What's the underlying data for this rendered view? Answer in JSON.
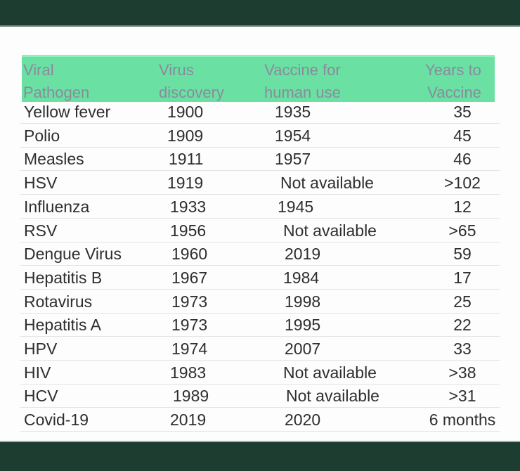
{
  "table": {
    "headers": [
      {
        "line1": "Viral",
        "line2": "Pathogen"
      },
      {
        "line1": "Virus",
        "line2": "discovery"
      },
      {
        "line1": "Vaccine for",
        "line2": "human use"
      },
      {
        "line1": "Years to",
        "line2": "Vaccine"
      }
    ],
    "rows": [
      {
        "pathogen": "Yellow fever",
        "discovery": "1900",
        "vaccine": "1935",
        "years": "35"
      },
      {
        "pathogen": "Polio",
        "discovery": "1909",
        "vaccine": "1954",
        "years": "45"
      },
      {
        "pathogen": "Measles",
        "discovery": "1911",
        "vaccine": "1957",
        "years": "46"
      },
      {
        "pathogen": "HSV",
        "discovery": "1919",
        "vaccine": "Not available",
        "years": ">102"
      },
      {
        "pathogen": "Influenza",
        "discovery": "1933",
        "vaccine": "1945",
        "years": "12"
      },
      {
        "pathogen": "RSV",
        "discovery": "1956",
        "vaccine": "Not available",
        "years": ">65"
      },
      {
        "pathogen": "Dengue Virus",
        "discovery": "1960",
        "vaccine": "2019",
        "years": "59"
      },
      {
        "pathogen": "Hepatitis B",
        "discovery": "1967",
        "vaccine": "1984",
        "years": "17"
      },
      {
        "pathogen": "Rotavirus",
        "discovery": "1973",
        "vaccine": "1998",
        "years": "25"
      },
      {
        "pathogen": "Hepatitis A",
        "discovery": "1973",
        "vaccine": "1995",
        "years": "22"
      },
      {
        "pathogen": "HPV",
        "discovery": "1974",
        "vaccine": "2007",
        "years": "33"
      },
      {
        "pathogen": "HIV",
        "discovery": "1983",
        "vaccine": "Not available",
        "years": ">38"
      },
      {
        "pathogen": "HCV",
        "discovery": "1989",
        "vaccine": "Not available",
        "years": ">31"
      },
      {
        "pathogen": "Covid-19",
        "discovery": "2019",
        "vaccine": "2020",
        "years": "6 months"
      }
    ]
  },
  "colors": {
    "band": "#1d3d31",
    "header_fill": "#6be0a3",
    "header_text": "#8a8a9e",
    "body_text": "#2e2e2e"
  }
}
